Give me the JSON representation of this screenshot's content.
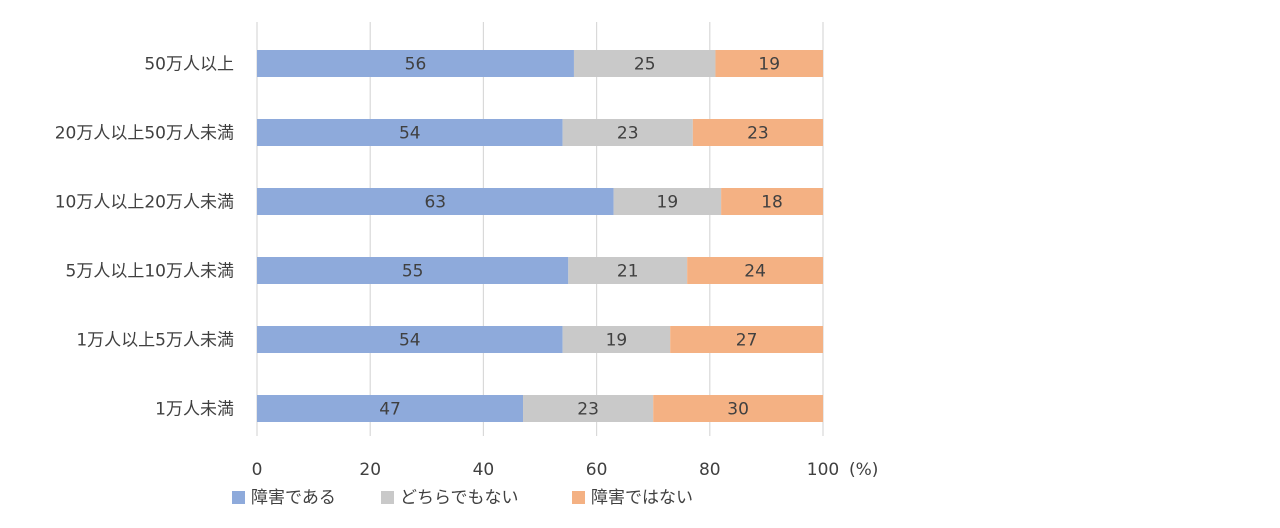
{
  "chart_data": {
    "type": "bar",
    "orientation": "horizontal",
    "stacked": true,
    "categories": [
      "50万人以上",
      "20万人以上50万人未満",
      "10万人以上20万人未満",
      "5万人以上10万人未満",
      "1万人以上5万人未満",
      "1万人未満"
    ],
    "series": [
      {
        "name": "障害である",
        "color": "#8EAADB",
        "values": [
          56,
          54,
          63,
          55,
          54,
          47
        ]
      },
      {
        "name": "どちらでもない",
        "color": "#C9C9C9",
        "values": [
          25,
          23,
          19,
          21,
          19,
          23
        ]
      },
      {
        "name": "障害ではない",
        "color": "#F4B183",
        "values": [
          19,
          23,
          18,
          24,
          27,
          30
        ]
      }
    ],
    "x_ticks": [
      "0",
      "20",
      "40",
      "60",
      "80",
      "100"
    ],
    "unit_label": "(%)",
    "xlim": [
      0,
      100
    ],
    "grid": true,
    "legend_position": "bottom",
    "label_color": "#404040",
    "grid_color": "#D9D9D9"
  }
}
